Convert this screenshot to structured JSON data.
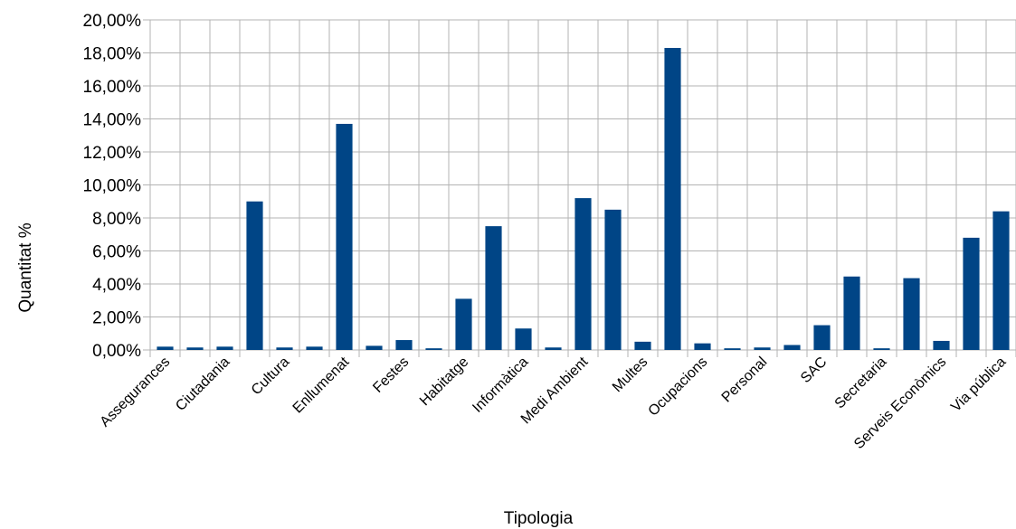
{
  "chart_data": {
    "type": "bar",
    "xlabel": "Tipologia",
    "ylabel": "Quantitat %",
    "ylim": [
      0,
      20
    ],
    "y_ticks": [
      "0,00%",
      "2,00%",
      "4,00%",
      "6,00%",
      "8,00%",
      "10,00%",
      "12,00%",
      "14,00%",
      "16,00%",
      "18,00%",
      "20,00%"
    ],
    "grid": true,
    "bar_color": "#004586",
    "categories": [
      "Assegurances",
      "",
      "Ciutadania",
      "",
      "Cultura",
      "",
      "Enllumenat",
      "",
      "Festes",
      "",
      "Habitatge",
      "",
      "Informàtica",
      "",
      "Medi Ambient",
      "",
      "Multes",
      "",
      "Ocupacions",
      "",
      "Personal",
      "",
      "SAC",
      "",
      "Secretaria",
      "",
      "Serveis Econòmics",
      "",
      "Via pública"
    ],
    "values": [
      0.2,
      0.15,
      0.2,
      9.0,
      0.15,
      0.2,
      13.7,
      0.25,
      0.6,
      0.1,
      3.1,
      7.5,
      1.3,
      0.15,
      9.2,
      8.5,
      0.5,
      18.3,
      0.4,
      0.1,
      0.15,
      0.3,
      1.5,
      4.45,
      0.1,
      4.35,
      0.55,
      6.8,
      8.4
    ]
  }
}
